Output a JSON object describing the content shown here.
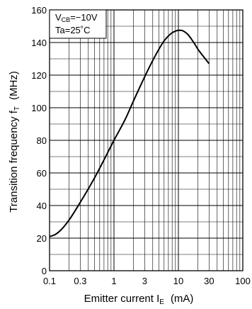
{
  "chart_data": {
    "type": "line",
    "x_scale": "log",
    "xlim": [
      0.1,
      100
    ],
    "ylim": [
      0,
      160
    ],
    "x_ticks": [
      {
        "value": 0.1,
        "label": "0.1"
      },
      {
        "value": 0.3,
        "label": "0.3"
      },
      {
        "value": 1,
        "label": "1"
      },
      {
        "value": 3,
        "label": "3"
      },
      {
        "value": 10,
        "label": "10"
      },
      {
        "value": 30,
        "label": "30"
      },
      {
        "value": 100,
        "label": "100"
      }
    ],
    "y_ticks": [
      {
        "value": 0,
        "label": "0"
      },
      {
        "value": 20,
        "label": "20"
      },
      {
        "value": 40,
        "label": "40"
      },
      {
        "value": 60,
        "label": "60"
      },
      {
        "value": 80,
        "label": "80"
      },
      {
        "value": 100,
        "label": "100"
      },
      {
        "value": 120,
        "label": "120"
      },
      {
        "value": 140,
        "label": "140"
      },
      {
        "value": 160,
        "label": "160"
      }
    ],
    "y_minor_step": 10,
    "grid": true,
    "xlabel": {
      "main": "Emitter current  I",
      "sub": "E",
      "unit": "(mA)"
    },
    "ylabel": {
      "main": "Transition frequency  f",
      "sub": "T",
      "unit": "(MHz)"
    },
    "annotation": {
      "line1": {
        "main": "V",
        "sub": "CB",
        "rest": "=−10V"
      },
      "line2": "Ta=25˚C"
    },
    "legend_placement": "top-left",
    "line_color": "#000000",
    "series": [
      {
        "x": [
          0.1,
          0.12,
          0.15,
          0.2,
          0.3,
          0.5,
          0.7,
          1,
          1.5,
          2,
          3,
          4,
          5,
          6,
          7,
          8,
          9,
          10,
          11,
          12,
          14,
          16,
          18,
          20,
          25,
          30
        ],
        "y": [
          21,
          22,
          25,
          31,
          42,
          57,
          68,
          80,
          93,
          104,
          119,
          129,
          136,
          141,
          144,
          146,
          147,
          147.5,
          147.5,
          147,
          145,
          142,
          139,
          136,
          131,
          127
        ]
      }
    ]
  }
}
